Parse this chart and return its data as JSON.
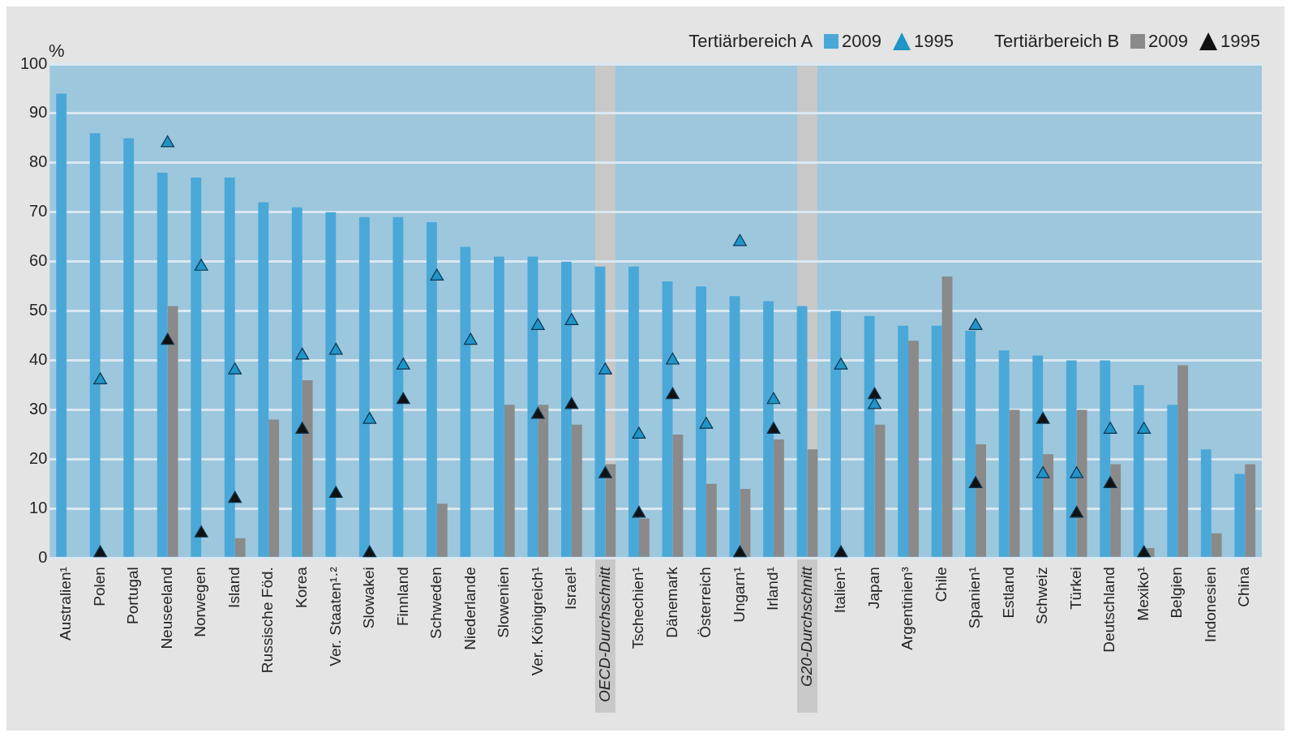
{
  "chart_data": {
    "type": "bar",
    "ylabel": "%",
    "legend_title": [
      "Tertiärbereich A",
      "Tertiärbereich B"
    ],
    "categories": [
      "Australien¹",
      "Polen",
      "Portugal",
      "Neuseeland",
      "Norwegen",
      "Island",
      "Russische Föd.",
      "Korea",
      "Ver. Staaten¹·²",
      "Slowakei",
      "Finnland",
      "Schweden",
      "Niederlande",
      "Slowenien",
      "Ver. Königreich¹",
      "Israel¹",
      "OECD-Durchschnitt",
      "Tschechien¹",
      "Dänemark",
      "Österreich",
      "Ungarn¹",
      "Irland¹",
      "G20-Durchschnitt",
      "Italien¹",
      "Japan",
      "Argentinien³",
      "Chile",
      "Spanien¹",
      "Estland",
      "Schweiz",
      "Türkei",
      "Deutschland",
      "Mexiko¹",
      "Belgien",
      "Indonesien",
      "China"
    ],
    "series": [
      {
        "name": "2009",
        "type": "bar",
        "color": "#4aa8d8",
        "values": [
          94,
          86,
          85,
          78,
          77,
          77,
          72,
          71,
          70,
          69,
          69,
          68,
          63,
          61,
          61,
          60,
          59,
          59,
          56,
          55,
          53,
          52,
          51,
          50,
          49,
          47,
          47,
          46,
          42,
          41,
          40,
          40,
          35,
          31,
          22,
          17
        ]
      },
      {
        "name": "1995",
        "type": "scatter",
        "marker": "triangle",
        "color": "#1f95c8",
        "values": [
          null,
          36,
          null,
          84,
          59,
          38,
          null,
          41,
          42,
          28,
          39,
          57,
          44,
          null,
          47,
          48,
          38,
          25,
          40,
          27,
          64,
          32,
          null,
          39,
          31,
          null,
          null,
          47,
          null,
          17,
          17,
          26,
          26,
          null,
          null,
          null
        ]
      },
      {
        "name": "2009",
        "type": "bar",
        "color": "#8a8a8a",
        "values": [
          null,
          null,
          null,
          51,
          null,
          4,
          28,
          36,
          null,
          null,
          null,
          11,
          null,
          31,
          31,
          27,
          19,
          8,
          25,
          15,
          14,
          24,
          22,
          null,
          27,
          44,
          57,
          23,
          30,
          21,
          30,
          19,
          2,
          39,
          5,
          19
        ]
      },
      {
        "name": "1995",
        "type": "scatter",
        "marker": "triangle",
        "color": "#111111",
        "values": [
          null,
          1,
          null,
          44,
          5,
          12,
          null,
          26,
          13,
          1,
          32,
          null,
          null,
          null,
          29,
          31,
          17,
          9,
          33,
          null,
          1,
          26,
          null,
          1,
          33,
          null,
          null,
          15,
          null,
          28,
          9,
          15,
          1,
          null,
          null,
          null
        ]
      }
    ],
    "bands": [
      {
        "axis": "x",
        "from": "OECD-Durchschnitt",
        "to": "OECD-Durchschnitt",
        "color": "#c8c8c8"
      },
      {
        "axis": "x",
        "from": "G20-Durchschnitt",
        "to": "G20-Durchschnitt",
        "color": "#c8c8c8"
      }
    ],
    "ylim": [
      0,
      100
    ],
    "yticks": [
      0,
      10,
      20,
      30,
      40,
      50,
      60,
      70,
      80,
      90,
      100
    ],
    "grid": "y",
    "legend": "top right"
  }
}
